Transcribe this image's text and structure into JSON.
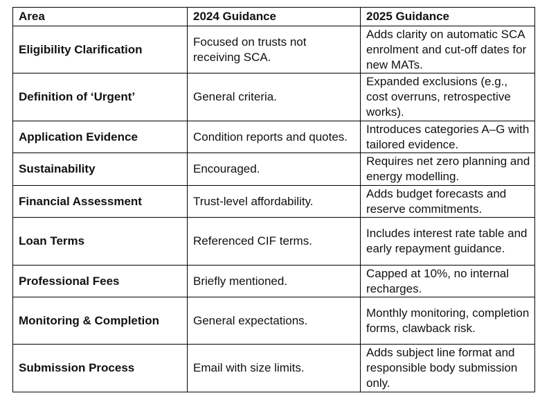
{
  "table": {
    "header": [
      "Area",
      "2024 Guidance",
      "2025 Guidance"
    ],
    "rows": [
      [
        "Eligibility Clarification",
        "Focused on trusts not receiving SCA.",
        "Adds clarity on automatic SCA enrolment and cut-off dates for new MATs."
      ],
      [
        "Definition of ‘Urgent’",
        "General criteria.",
        "Expanded exclusions (e.g., cost overruns, retrospective works)."
      ],
      [
        "Application Evidence",
        "Condition reports and quotes.",
        "Introduces categories A–G with tailored evidence."
      ],
      [
        "Sustainability",
        "Encouraged.",
        "Requires net zero planning and energy modelling."
      ],
      [
        "Financial Assessment",
        "Trust-level affordability.",
        "Adds budget forecasts and reserve commitments."
      ],
      [
        "Loan Terms",
        "Referenced CIF terms.",
        "Includes interest rate table and early repayment guidance."
      ],
      [
        "Professional Fees",
        "Briefly mentioned.",
        "Capped at 10%, no internal recharges."
      ],
      [
        "Monitoring & Completion",
        "General expectations.",
        "Monthly monitoring, completion forms, clawback risk."
      ],
      [
        "Submission Process",
        "Email with size limits.",
        "Adds subject line format and responsible body submission only."
      ]
    ]
  }
}
